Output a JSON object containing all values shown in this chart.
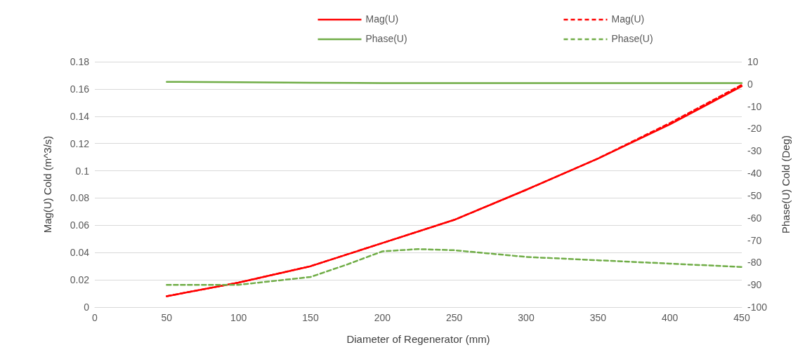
{
  "chart_data": {
    "type": "line",
    "xlabel": "Diameter of Regenerator (mm)",
    "ylabel": "Mag(U) Cold (m^3/s)",
    "y2label": "Phase(U) Cold (Deg)",
    "xlim": [
      0,
      450
    ],
    "xticks": [
      0,
      50,
      100,
      150,
      200,
      250,
      300,
      350,
      400,
      450
    ],
    "ylim": [
      0,
      0.18
    ],
    "yticks": [
      0,
      0.02,
      0.04,
      0.06,
      0.08,
      0.1,
      0.12,
      0.14,
      0.16,
      0.18
    ],
    "y2lim": [
      -100,
      10
    ],
    "y2ticks": [
      -100,
      -90,
      -80,
      -70,
      -60,
      -50,
      -40,
      -30,
      -20,
      -10,
      0,
      10
    ],
    "grid": "y",
    "legend": "top",
    "marker": "none",
    "series": [
      {
        "name": "Mag(U)",
        "color": "#ff0000",
        "line_style": "solid",
        "x": [
          50,
          100,
          150,
          200,
          250,
          300,
          350,
          400,
          450
        ],
        "values": [
          0.008,
          0.018,
          0.03,
          0.047,
          0.064,
          0.086,
          0.109,
          0.134,
          0.162
        ]
      },
      {
        "name": "Mag(U)",
        "color": "#ff0000",
        "line_style": "dashed",
        "x": [
          50,
          100,
          150,
          200,
          250,
          300,
          350,
          400,
          450
        ],
        "values": [
          0.008,
          0.018,
          0.03,
          0.047,
          0.064,
          0.086,
          0.109,
          0.135,
          0.163
        ]
      },
      {
        "name": "Phase(U)",
        "color": "#70ad47",
        "line_style": "solid",
        "axis": "y2",
        "x": [
          50,
          100,
          150,
          200,
          250,
          300,
          350,
          400,
          450
        ],
        "values": [
          1,
          0.8,
          0.6,
          0.4,
          0.4,
          0.4,
          0.4,
          0.4,
          0.4
        ]
      },
      {
        "name": "Phase(U)",
        "color": "#70ad47",
        "line_style": "dashed",
        "axis": "y2",
        "x": [
          50,
          100,
          150,
          175,
          200,
          225,
          250,
          275,
          300,
          350,
          400,
          450
        ],
        "values": [
          -90,
          -90,
          -86.5,
          -81,
          -75,
          -74,
          -74.5,
          -76,
          -77.5,
          -79,
          -80.5,
          -82
        ]
      }
    ]
  }
}
